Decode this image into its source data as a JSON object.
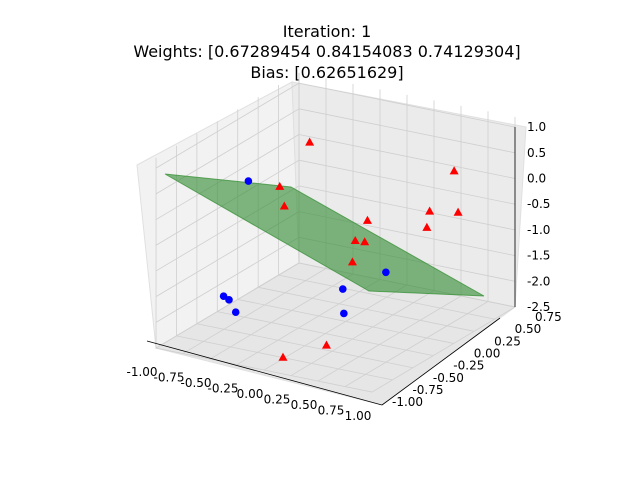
{
  "chart_data": {
    "type": "scatter",
    "projection": "3d",
    "title_lines": [
      "Iteration: 1",
      "Weights: [0.67289454 0.84154083 0.74129304]",
      "Bias: [0.62651629]"
    ],
    "xlim": [
      -1.0,
      1.0
    ],
    "ylim": [
      -1.0,
      0.75
    ],
    "zlim": [
      -2.5,
      1.0
    ],
    "x_ticks": [
      "-1.00",
      "-0.75",
      "-0.50",
      "-0.25",
      "0.00",
      "0.25",
      "0.50",
      "0.75",
      "1.00"
    ],
    "y_ticks": [
      "-1.00",
      "-0.75",
      "-0.50",
      "-0.25",
      "0.00",
      "0.25",
      "0.50",
      "0.75"
    ],
    "z_ticks": [
      "1.0",
      "0.5",
      "0.0",
      "-0.5",
      "-1.0",
      "-1.5",
      "-2.0",
      "-2.5"
    ],
    "grid": true,
    "series": [
      {
        "marker": "triangle",
        "color": "#ff0000",
        "points": [
          {
            "x": -0.75,
            "y": 0.55,
            "z": 0.15
          },
          {
            "x": -0.8,
            "y": 0.25,
            "z": -0.45
          },
          {
            "x": -0.72,
            "y": 0.2,
            "z": -0.75
          },
          {
            "x": 0.55,
            "y": 0.6,
            "z": 0.1
          },
          {
            "x": 0.7,
            "y": 0.45,
            "z": -0.5
          },
          {
            "x": 0.55,
            "y": 0.3,
            "z": -0.4
          },
          {
            "x": 0.6,
            "y": 0.2,
            "z": -0.6
          },
          {
            "x": 0.05,
            "y": 0.2,
            "z": -0.7
          },
          {
            "x": 0.05,
            "y": 0.05,
            "z": -0.95
          },
          {
            "x": 0.1,
            "y": 0.1,
            "z": -1.0
          },
          {
            "x": 0.1,
            "y": -0.05,
            "z": -1.25
          },
          {
            "x": 0.2,
            "y": -0.5,
            "z": -2.4
          },
          {
            "x": 0.1,
            "y": -0.9,
            "z": -2.3
          }
        ]
      },
      {
        "marker": "circle",
        "color": "#0000ff",
        "points": [
          {
            "x": -0.75,
            "y": -0.2,
            "z": 0.1
          },
          {
            "x": 0.2,
            "y": -0.3,
            "z": -1.5
          },
          {
            "x": 0.55,
            "y": -0.75,
            "z": -1.4
          },
          {
            "x": 0.75,
            "y": -0.5,
            "z": -0.75
          },
          {
            "x": -0.45,
            "y": -0.9,
            "z": -1.35
          },
          {
            "x": -0.4,
            "y": -0.9,
            "z": -1.4
          },
          {
            "x": -0.3,
            "y": -0.95,
            "z": -1.55
          }
        ]
      }
    ],
    "surface": {
      "type": "plane",
      "color": "#2e8b2e",
      "alpha": 0.6
    }
  }
}
